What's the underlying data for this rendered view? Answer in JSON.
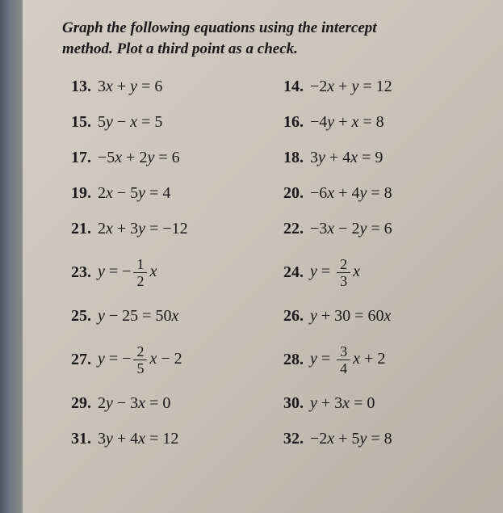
{
  "header": {
    "line1": "Graph the following equations using the intercept",
    "line2": "method. Plot a third point as a check."
  },
  "problems": [
    {
      "n": "13.",
      "eq_html": "3<span class='ital'>x</span> + <span class='ital'>y</span> = 6"
    },
    {
      "n": "14.",
      "eq_html": "−2<span class='ital'>x</span> + <span class='ital'>y</span> = 12"
    },
    {
      "n": "15.",
      "eq_html": "5<span class='ital'>y</span> − <span class='ital'>x</span> = 5"
    },
    {
      "n": "16.",
      "eq_html": "−4<span class='ital'>y</span> + <span class='ital'>x</span> = 8"
    },
    {
      "n": "17.",
      "eq_html": "−5<span class='ital'>x</span> + 2<span class='ital'>y</span> = 6"
    },
    {
      "n": "18.",
      "eq_html": "3<span class='ital'>y</span> + 4<span class='ital'>x</span> = 9"
    },
    {
      "n": "19.",
      "eq_html": "2<span class='ital'>x</span> − 5<span class='ital'>y</span> = 4"
    },
    {
      "n": "20.",
      "eq_html": "−6<span class='ital'>x</span> + 4<span class='ital'>y</span> = 8"
    },
    {
      "n": "21.",
      "eq_html": "2<span class='ital'>x</span> + 3<span class='ital'>y</span> = −12"
    },
    {
      "n": "22.",
      "eq_html": "−3<span class='ital'>x</span> − 2<span class='ital'>y</span> = 6"
    },
    {
      "n": "23.",
      "eq_html": "<span class='ital'>y</span> = −<span class='frac'><span class='n'>1</span><span class='d'>2</span></span><span class='ital'>x</span>",
      "tall": true
    },
    {
      "n": "24.",
      "eq_html": "<span class='ital'>y</span> = <span class='frac'><span class='n'>2</span><span class='d'>3</span></span><span class='ital'>x</span>",
      "tall": true
    },
    {
      "n": "25.",
      "eq_html": "<span class='ital'>y</span> − 25 = 50<span class='ital'>x</span>"
    },
    {
      "n": "26.",
      "eq_html": "<span class='ital'>y</span> + 30 = 60<span class='ital'>x</span>"
    },
    {
      "n": "27.",
      "eq_html": "<span class='ital'>y</span> = −<span class='frac'><span class='n'>2</span><span class='d'>5</span></span><span class='ital'>x</span> − 2",
      "tall": true
    },
    {
      "n": "28.",
      "eq_html": "<span class='ital'>y</span> = <span class='frac'><span class='n'>3</span><span class='d'>4</span></span><span class='ital'>x</span> + 2",
      "tall": true
    },
    {
      "n": "29.",
      "eq_html": "2<span class='ital'>y</span> − 3<span class='ital'>x</span> = 0"
    },
    {
      "n": "30.",
      "eq_html": "<span class='ital'>y</span> + 3<span class='ital'>x</span> = 0"
    },
    {
      "n": "31.",
      "eq_html": "3<span class='ital'>y</span> + 4<span class='ital'>x</span> = 12"
    },
    {
      "n": "32.",
      "eq_html": "−2<span class='ital'>x</span> + 5<span class='ital'>y</span> = 8"
    }
  ]
}
